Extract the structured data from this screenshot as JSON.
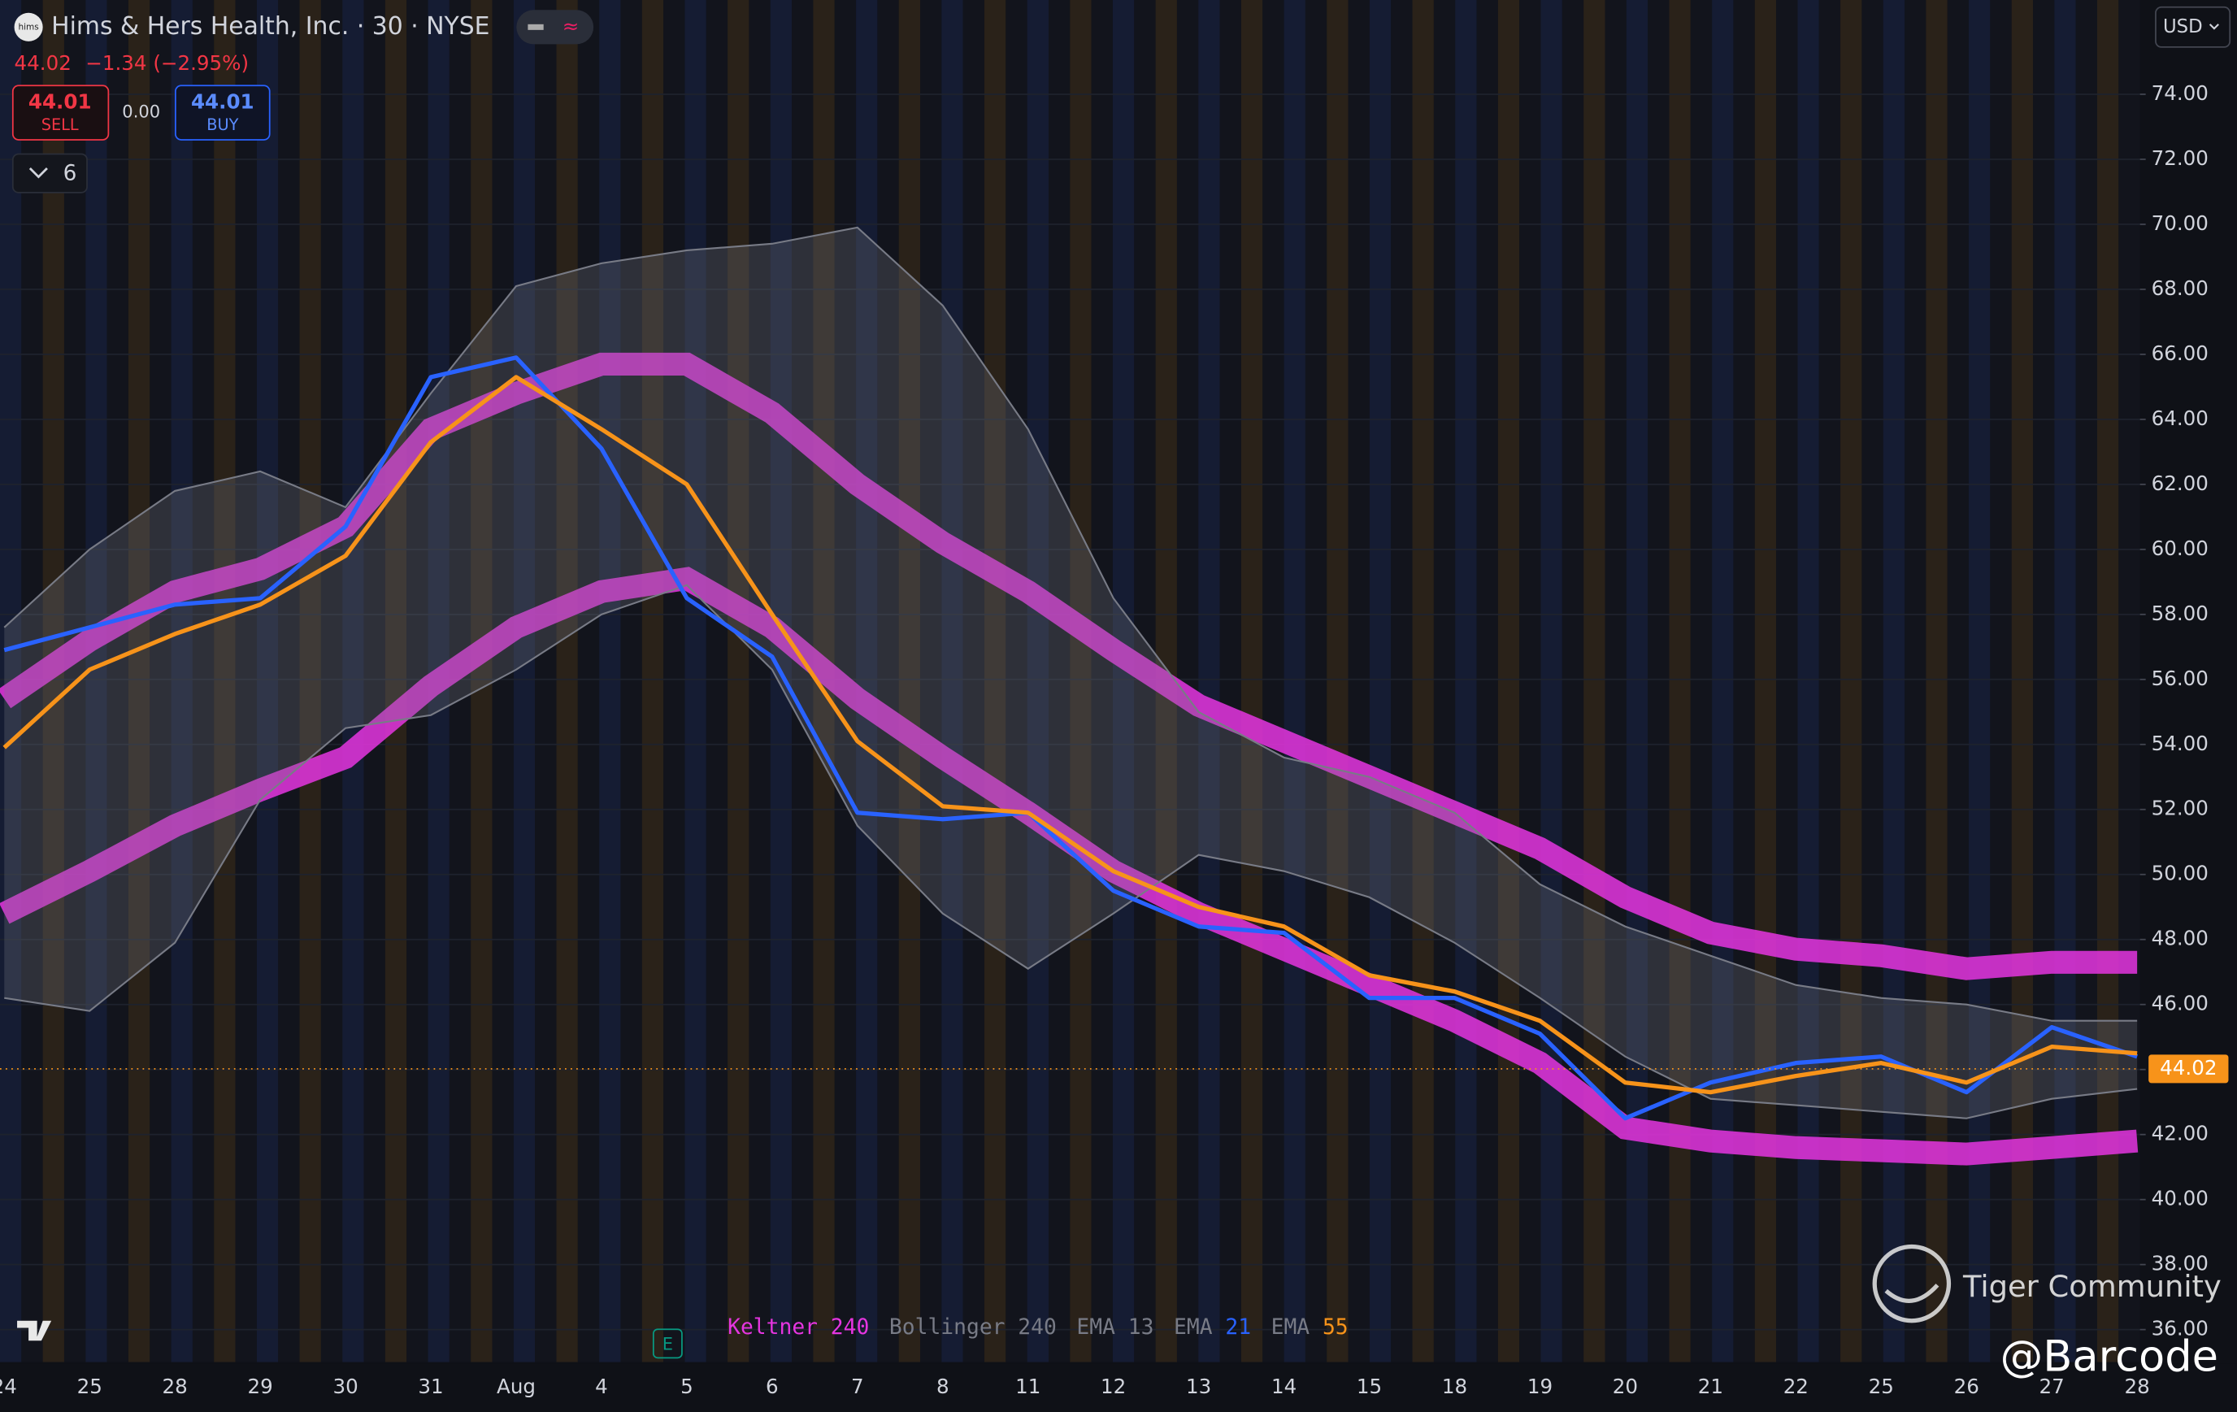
{
  "header": {
    "title": "Hims & Hers Health, Inc. · 30 · NYSE",
    "logo": "hims",
    "price": 44.02,
    "change": "−1.34 (−2.95%)",
    "sell_price": 44.01,
    "sell": "SELL",
    "spread": "0.00",
    "buy_price": 44.01,
    "buy": "BUY",
    "indicator_count": 6,
    "currency": "USD"
  },
  "watermark": {
    "brand": "Tiger Community",
    "author": "@Barcode"
  },
  "chart_data": {
    "type": "line",
    "categories": [
      "24",
      "25",
      "28",
      "29",
      "30",
      "31",
      "Aug",
      "4",
      "5",
      "6",
      "7",
      "8",
      "11",
      "12",
      "13",
      "14",
      "15",
      "18",
      "19",
      "20",
      "21",
      "22",
      "25",
      "26",
      "27",
      "28"
    ],
    "ylim": [
      35.0,
      76.9
    ],
    "yticks": [
      {
        "value": 36,
        "label": "36.00"
      },
      {
        "value": 38,
        "label": "38.00"
      },
      {
        "value": 40,
        "label": "40.00"
      },
      {
        "value": 42,
        "label": "42.00"
      },
      {
        "value": 44,
        "label": "44.00"
      },
      {
        "value": 46,
        "label": "46.00"
      },
      {
        "value": 48,
        "label": "48.00"
      },
      {
        "value": 50,
        "label": "50.00"
      },
      {
        "value": 52,
        "label": "52.00"
      },
      {
        "value": 54,
        "label": "54.00"
      },
      {
        "value": 56,
        "label": "56.00"
      },
      {
        "value": 58,
        "label": "58.00"
      },
      {
        "value": 60,
        "label": "60.00"
      },
      {
        "value": 62,
        "label": "62.00"
      },
      {
        "value": 64,
        "label": "64.00"
      },
      {
        "value": 66,
        "label": "66.00"
      },
      {
        "value": 68,
        "label": "68.00"
      },
      {
        "value": 70,
        "label": "70.00"
      },
      {
        "value": 72,
        "label": "72.00"
      },
      {
        "value": 74,
        "label": "74.00"
      }
    ],
    "grid": true,
    "last_price": 44.02,
    "last_price_color": "#f7931a",
    "series": [
      {
        "name": "Keltner",
        "length": 240,
        "color": "#e535e0",
        "upper": [
          55.4,
          57.2,
          58.7,
          59.4,
          60.7,
          63.7,
          64.8,
          65.7,
          65.7,
          64.2,
          62.0,
          60.2,
          58.7,
          56.9,
          55.2,
          54.1,
          53.0,
          51.9,
          50.8,
          49.3,
          48.2,
          47.7,
          47.5,
          47.1,
          47.3,
          47.3
        ],
        "lower": [
          48.8,
          50.1,
          51.5,
          52.6,
          53.6,
          55.8,
          57.6,
          58.7,
          59.1,
          57.6,
          55.4,
          53.6,
          51.9,
          50.1,
          48.8,
          47.7,
          46.6,
          45.5,
          44.2,
          42.2,
          41.8,
          41.6,
          41.5,
          41.4,
          41.6,
          41.8
        ]
      },
      {
        "name": "Bollinger",
        "length": 240,
        "color": "#787b86",
        "upper": [
          57.6,
          60.0,
          61.8,
          62.4,
          61.3,
          64.8,
          68.1,
          68.8,
          69.2,
          69.4,
          69.9,
          67.5,
          63.7,
          58.5,
          55.0,
          53.6,
          53.0,
          51.9,
          49.7,
          48.4,
          47.5,
          46.6,
          46.2,
          46.0,
          45.5,
          45.5
        ],
        "lower": [
          46.2,
          45.8,
          47.9,
          52.3,
          54.5,
          54.9,
          56.3,
          58.0,
          58.9,
          56.3,
          51.5,
          48.8,
          47.1,
          48.8,
          50.6,
          50.1,
          49.3,
          47.9,
          46.2,
          44.4,
          43.1,
          42.9,
          42.7,
          42.5,
          43.1,
          43.4
        ]
      },
      {
        "name": "EMA",
        "length": 13,
        "color": "#787b86"
      },
      {
        "name": "EMA",
        "length": 21,
        "color": "#2962ff",
        "values": [
          56.9,
          57.6,
          58.3,
          58.5,
          60.7,
          65.3,
          65.9,
          63.1,
          58.5,
          56.7,
          51.9,
          51.7,
          51.9,
          49.5,
          48.4,
          48.2,
          46.2,
          46.2,
          45.1,
          42.5,
          43.6,
          44.2,
          44.4,
          43.3,
          45.3,
          44.4
        ]
      },
      {
        "name": "EMA",
        "length": 55,
        "color": "#f7931a",
        "values": [
          53.9,
          56.3,
          57.4,
          58.3,
          59.8,
          63.3,
          65.3,
          63.7,
          62.0,
          58.0,
          54.1,
          52.1,
          51.9,
          50.1,
          49.0,
          48.4,
          46.9,
          46.4,
          45.5,
          43.6,
          43.3,
          43.8,
          44.2,
          43.6,
          44.7,
          44.5
        ]
      }
    ]
  }
}
